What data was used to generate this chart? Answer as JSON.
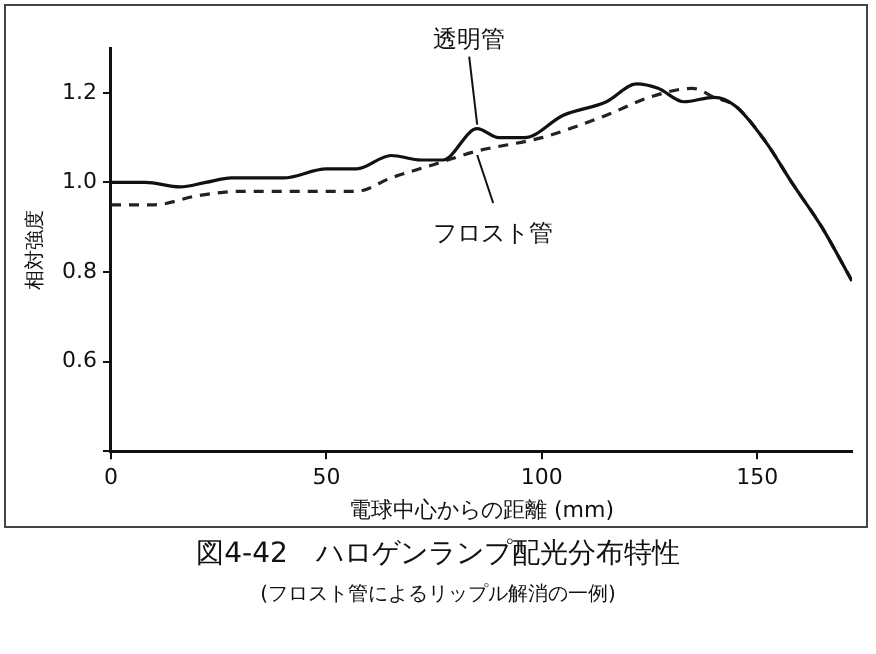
{
  "chart_data": {
    "type": "line",
    "title": "図4-42　ハロゲンランプ配光分布特性",
    "subtitle": "(フロスト管によるリップル解消の一例)",
    "xlabel": "電球中心からの距離 (mm)",
    "ylabel": "相対強度",
    "xlim": [
      0,
      172
    ],
    "xticks": [
      0,
      50,
      100,
      150
    ],
    "ylim": [
      0.4,
      1.3
    ],
    "yticks": [
      {
        "value": 0.4,
        "label": null
      },
      {
        "value": 0.6,
        "label": "0.6"
      },
      {
        "value": 0.8,
        "label": "0.8"
      },
      {
        "value": 1.0,
        "label": "1.0"
      },
      {
        "value": 1.2,
        "label": "1.2"
      }
    ],
    "grid": false,
    "legend": false,
    "marker": "none",
    "series": [
      {
        "color": "#111111",
        "line_style": "solid",
        "x": [
          0,
          8,
          16,
          22,
          28,
          40,
          50,
          57,
          65,
          72,
          77,
          85,
          90,
          96,
          105,
          115,
          122,
          127,
          133,
          140,
          145,
          152,
          158,
          165,
          172
        ],
        "values": [
          1.0,
          1.0,
          0.99,
          1.0,
          1.01,
          1.01,
          1.03,
          1.03,
          1.06,
          1.05,
          1.05,
          1.12,
          1.1,
          1.1,
          1.15,
          1.18,
          1.22,
          1.21,
          1.18,
          1.19,
          1.17,
          1.09,
          1.0,
          0.9,
          0.78
        ]
      },
      {
        "color": "#222222",
        "line_style": "dashed",
        "x": [
          0,
          10,
          20,
          30,
          45,
          57,
          65,
          75,
          85,
          100,
          115,
          125,
          135,
          140,
          145,
          152,
          158,
          165,
          172
        ],
        "values": [
          0.95,
          0.95,
          0.97,
          0.98,
          0.98,
          0.98,
          1.01,
          1.04,
          1.07,
          1.1,
          1.15,
          1.19,
          1.21,
          1.19,
          1.17,
          1.09,
          1.0,
          0.9,
          0.78
        ]
      }
    ],
    "annotations": [
      {
        "text": "透明管",
        "x": 85,
        "y": 1.12
      },
      {
        "text": "フロスト管",
        "x": 85,
        "y": 1.07
      }
    ]
  }
}
